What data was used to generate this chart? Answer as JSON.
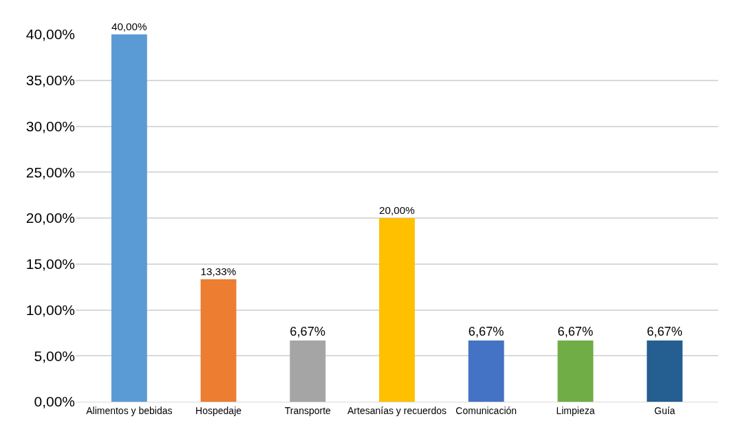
{
  "chart_data": {
    "type": "bar",
    "categories": [
      "Alimentos y bebidas",
      "Hospedaje",
      "Transporte",
      "Artesanías y recuerdos",
      "Comunicación",
      "Limpieza",
      "Guía"
    ],
    "values": [
      40,
      13.33,
      6.67,
      20,
      6.67,
      6.67,
      6.67
    ],
    "value_labels": [
      "40,00%",
      "13,33%",
      "6,67%",
      "20,00%",
      "6,67%",
      "6,67%",
      "6,67%"
    ],
    "colors": [
      "#5b9bd5",
      "#ed7d31",
      "#a5a5a5",
      "#ffc000",
      "#4472c4",
      "#70ad47",
      "#255e91"
    ],
    "ylim": [
      0,
      40
    ],
    "yticks": [
      {
        "value": 0,
        "label": "0,00%"
      },
      {
        "value": 5,
        "label": "5,00%"
      },
      {
        "value": 10,
        "label": "10,00%"
      },
      {
        "value": 15,
        "label": "15,00%"
      },
      {
        "value": 20,
        "label": "20,00%"
      },
      {
        "value": 25,
        "label": "25,00%"
      },
      {
        "value": 30,
        "label": "30,00%"
      },
      {
        "value": 35,
        "label": "35,00%"
      },
      {
        "value": 40,
        "label": "40,00%"
      }
    ],
    "grid": true
  }
}
